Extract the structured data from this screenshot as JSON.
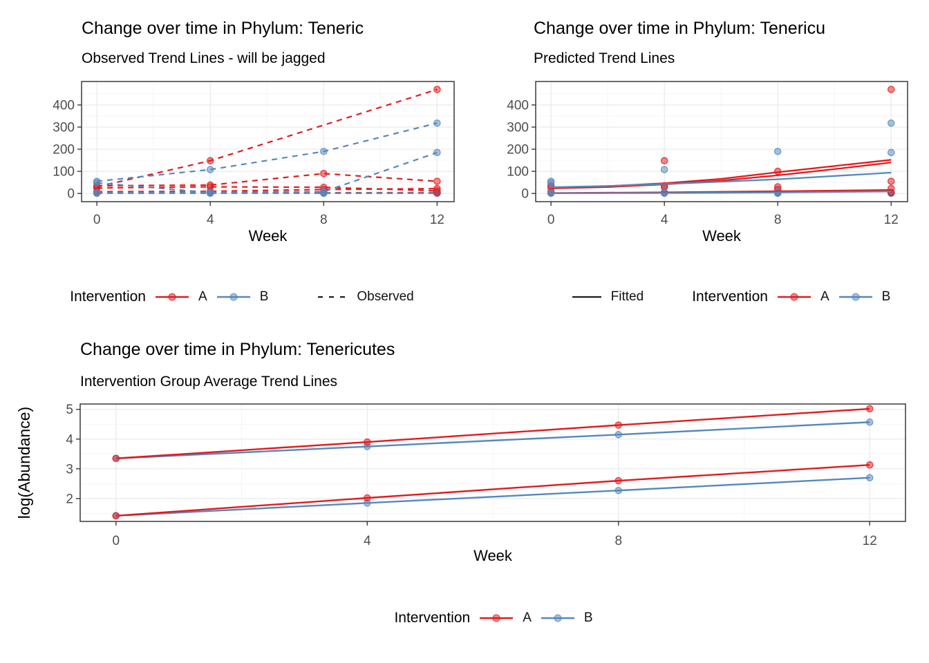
{
  "colors": {
    "intervention_a": "#E31A1C",
    "intervention_b": "#5488BE",
    "line_black": "#1A1A1A",
    "grid_major": "#E9E9E9",
    "grid_minor": "#F4F4F4",
    "panel_border": "#383838",
    "axis_text": "#4D4D4D",
    "title_text": "#000000"
  },
  "chart_data": [
    {
      "id": "observed",
      "type": "line",
      "title": "Change over time in Phylum: Teneric",
      "subtitle": "Observed Trend Lines - will be jagged",
      "xlabel": "Week",
      "ylabel": "",
      "x_ticks": [
        0,
        4,
        8,
        12
      ],
      "y_ticks": [
        0,
        100,
        200,
        300,
        400
      ],
      "xlim": [
        -0.54,
        12.6
      ],
      "ylim": [
        -37,
        506
      ],
      "grid": true,
      "line_style": "dashed",
      "legend": {
        "title": "Intervention",
        "items": [
          {
            "label": "A",
            "group": "A"
          },
          {
            "label": "B",
            "group": "B"
          }
        ],
        "linetype": {
          "label": "Observed",
          "style": "dashed"
        }
      },
      "series": [
        {
          "name": "A1",
          "group": "A",
          "points": [
            [
              0,
              30
            ],
            [
              4,
              148
            ],
            [
              12,
              470
            ]
          ]
        },
        {
          "name": "A2",
          "group": "A",
          "points": [
            [
              0,
              35
            ],
            [
              4,
              38
            ],
            [
              8,
              90
            ],
            [
              12,
              55
            ]
          ]
        },
        {
          "name": "A3",
          "group": "A",
          "points": [
            [
              0,
              25
            ],
            [
              4,
              30
            ],
            [
              8,
              28
            ],
            [
              12,
              12
            ]
          ]
        },
        {
          "name": "A4",
          "group": "A",
          "points": [
            [
              0,
              8
            ],
            [
              4,
              10
            ],
            [
              8,
              18
            ],
            [
              12,
              22
            ]
          ]
        },
        {
          "name": "A5",
          "group": "A",
          "points": [
            [
              0,
              3
            ],
            [
              4,
              4
            ],
            [
              8,
              3
            ],
            [
              12,
              4
            ]
          ]
        },
        {
          "name": "B1",
          "group": "B",
          "points": [
            [
              0,
              55
            ],
            [
              4,
              108
            ],
            [
              8,
              190
            ],
            [
              12,
              318
            ]
          ]
        },
        {
          "name": "B2",
          "group": "B",
          "points": [
            [
              0,
              4
            ],
            [
              4,
              6
            ],
            [
              8,
              8
            ],
            [
              12,
              185
            ]
          ]
        },
        {
          "name": "B3",
          "group": "B",
          "points": [
            [
              0,
              48
            ],
            [
              4,
              4
            ],
            [
              8,
              2
            ],
            [
              12,
              2
            ]
          ]
        },
        {
          "name": "B4",
          "group": "B",
          "points": [
            [
              0,
              1
            ],
            [
              4,
              1
            ],
            [
              8,
              1
            ],
            [
              12,
              1
            ]
          ]
        }
      ]
    },
    {
      "id": "predicted",
      "type": "scatter",
      "title": "Change over time in Phylum: Tenericu",
      "subtitle": "Predicted Trend Lines",
      "xlabel": "Week",
      "ylabel": "",
      "x_ticks": [
        0,
        4,
        8,
        12
      ],
      "y_ticks": [
        0,
        100,
        200,
        300,
        400
      ],
      "xlim": [
        -0.54,
        12.58
      ],
      "ylim": [
        -37,
        506
      ],
      "grid": true,
      "legend": {
        "fitted_label": "Fitted",
        "title": "Intervention",
        "items": [
          {
            "label": "A",
            "group": "A"
          },
          {
            "label": "B",
            "group": "B"
          }
        ]
      },
      "scatter": [
        {
          "group": "A",
          "points": [
            [
              0,
              35
            ],
            [
              0,
              27
            ],
            [
              0,
              8
            ],
            [
              0,
              3
            ],
            [
              4,
              148
            ],
            [
              4,
              35
            ],
            [
              4,
              28
            ],
            [
              4,
              4
            ],
            [
              8,
              100
            ],
            [
              8,
              30
            ],
            [
              8,
              18
            ],
            [
              8,
              3
            ],
            [
              12,
              470
            ],
            [
              12,
              55
            ],
            [
              12,
              22
            ],
            [
              12,
              4
            ]
          ]
        },
        {
          "group": "B",
          "points": [
            [
              0,
              55
            ],
            [
              0,
              48
            ],
            [
              0,
              4
            ],
            [
              0,
              1
            ],
            [
              4,
              108
            ],
            [
              4,
              6
            ],
            [
              4,
              4
            ],
            [
              4,
              1
            ],
            [
              8,
              190
            ],
            [
              8,
              8
            ],
            [
              8,
              2
            ],
            [
              8,
              1
            ],
            [
              12,
              318
            ],
            [
              12,
              185
            ],
            [
              12,
              2
            ],
            [
              12,
              1
            ]
          ]
        }
      ],
      "fitted": [
        {
          "name": "A-fit-upper-1",
          "group": "A",
          "points": [
            [
              0,
              26
            ],
            [
              2,
              33
            ],
            [
              4,
              46
            ],
            [
              6,
              66
            ],
            [
              8,
              96
            ],
            [
              10,
              124
            ],
            [
              12,
              152
            ]
          ]
        },
        {
          "name": "A-fit-upper-2",
          "group": "A",
          "points": [
            [
              0,
              23
            ],
            [
              2,
              29
            ],
            [
              4,
              41
            ],
            [
              6,
              58
            ],
            [
              8,
              82
            ],
            [
              10,
              110
            ],
            [
              12,
              140
            ]
          ]
        },
        {
          "name": "B-fit-upper",
          "group": "B",
          "points": [
            [
              0,
              28
            ],
            [
              2,
              34
            ],
            [
              4,
              43
            ],
            [
              6,
              53
            ],
            [
              8,
              64
            ],
            [
              10,
              79
            ],
            [
              12,
              94
            ]
          ]
        },
        {
          "name": "A-fit-lower",
          "group": "A",
          "points": [
            [
              0,
              2
            ],
            [
              4,
              5
            ],
            [
              8,
              10
            ],
            [
              12,
              16
            ]
          ]
        },
        {
          "name": "B-fit-lower",
          "group": "B",
          "points": [
            [
              0,
              1
            ],
            [
              4,
              2
            ],
            [
              8,
              5
            ],
            [
              12,
              9
            ]
          ]
        }
      ]
    },
    {
      "id": "average",
      "type": "line",
      "title": "Change over time in Phylum: Tenericutes",
      "subtitle": "Intervention Group Average Trend Lines",
      "xlabel": "Week",
      "ylabel": "log(Abundance)",
      "x": [
        0,
        4,
        8,
        12
      ],
      "x_ticks": [
        0,
        4,
        8,
        12
      ],
      "y_ticks": [
        2,
        3,
        4,
        5
      ],
      "xlim": [
        -0.57,
        12.57
      ],
      "ylim": [
        1.23,
        5.18
      ],
      "grid": true,
      "line_style": "solid",
      "legend": {
        "title": "Intervention",
        "items": [
          {
            "label": "A",
            "group": "A"
          },
          {
            "label": "B",
            "group": "B"
          }
        ]
      },
      "series": [
        {
          "name": "B-upper-avg",
          "group": "B",
          "values": [
            3.35,
            3.75,
            4.15,
            4.57
          ]
        },
        {
          "name": "B-lower-avg",
          "group": "B",
          "values": [
            1.42,
            1.85,
            2.27,
            2.7
          ]
        },
        {
          "name": "A-upper-avg",
          "group": "A",
          "values": [
            3.35,
            3.9,
            4.47,
            5.02
          ]
        },
        {
          "name": "A-lower-avg",
          "group": "A",
          "values": [
            1.42,
            2.02,
            2.6,
            3.13
          ]
        }
      ]
    }
  ]
}
